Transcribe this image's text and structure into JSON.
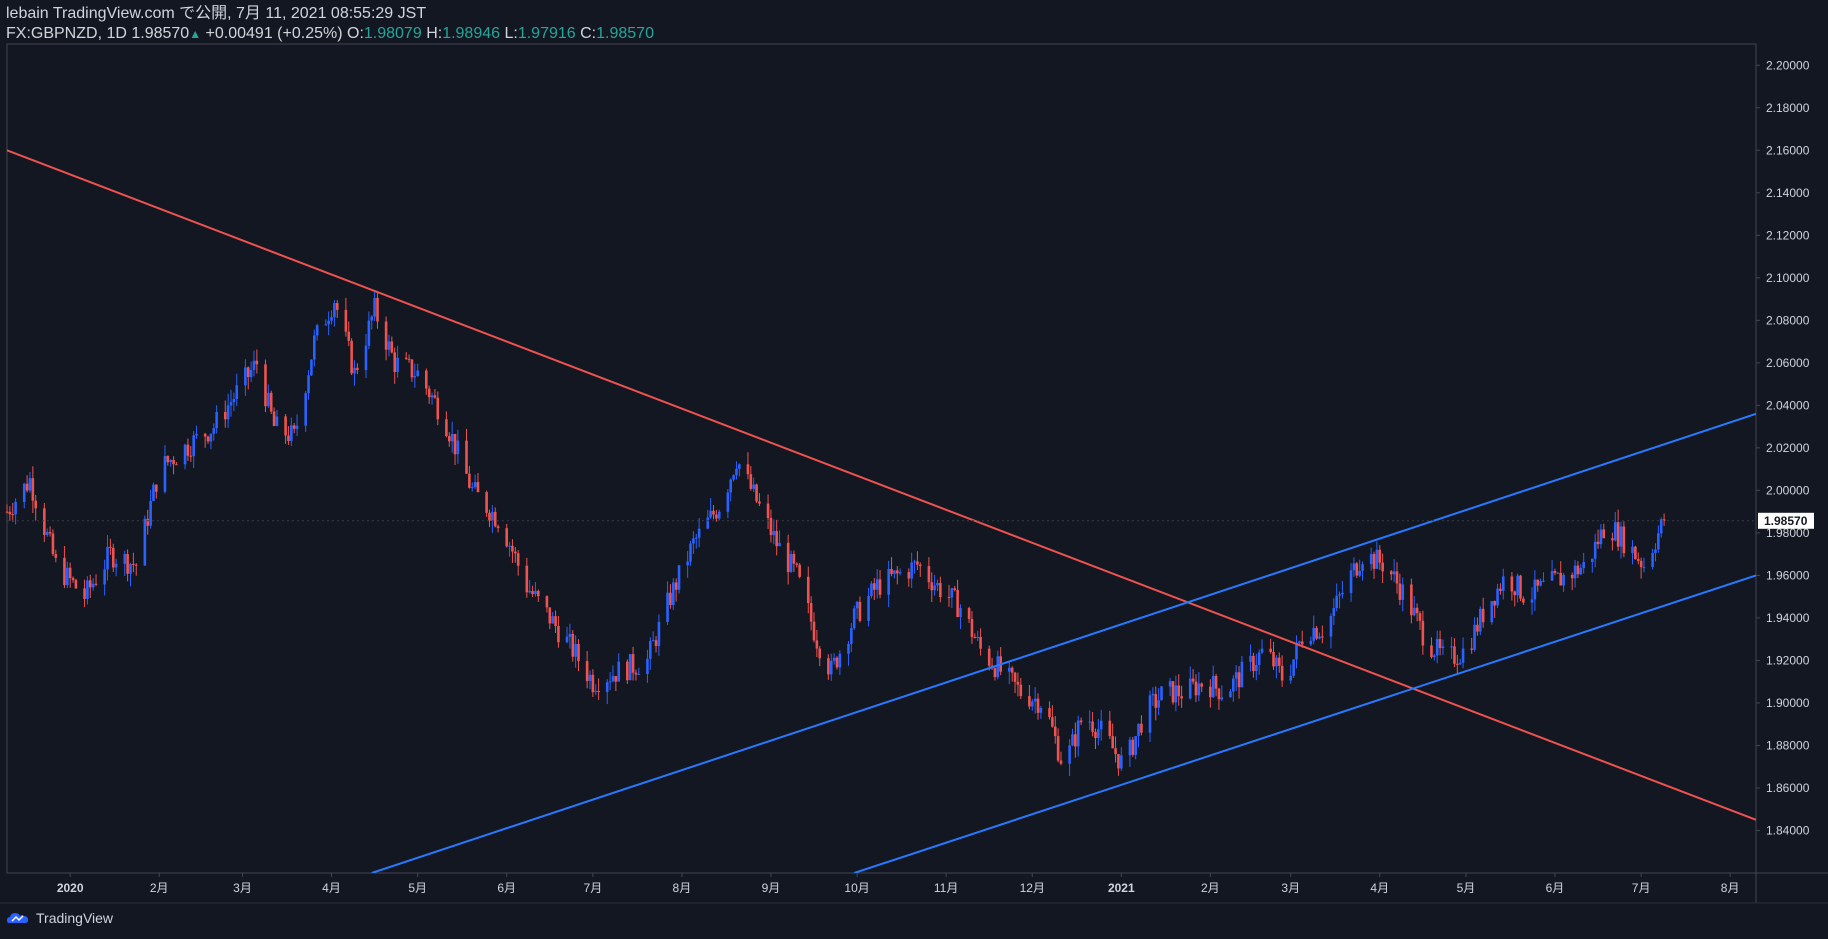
{
  "header": {
    "publisher": "lebain TradingView.com で公開, 7月 11, 2021 08:55:29 JST",
    "symbol": "FX:GBPNZD, 1D",
    "last": "1.98570",
    "change": "+0.00491 (+0.25%)",
    "o_label": "O:",
    "o_value": "1.98079",
    "h_label": "H:",
    "h_value": "1.98946",
    "l_label": "L:",
    "l_value": "1.97916",
    "c_label": "C:",
    "c_value": "1.98570"
  },
  "footer": {
    "brand": "TradingView"
  },
  "colors": {
    "background": "#131722",
    "up": "#2962ff",
    "down": "#ef5350",
    "support": "#2979ff",
    "resistance": "#ef5350",
    "axis_text": "#d1d4dc",
    "price_label_bg": "#ffffff"
  },
  "chart_data": {
    "type": "candlestick",
    "symbol": "FX:GBPNZD",
    "timeframe": "1D",
    "ylim": [
      1.82,
      2.21
    ],
    "y_ticks": [
      "1.84000",
      "1.86000",
      "1.88000",
      "1.90000",
      "1.92000",
      "1.94000",
      "1.96000",
      "1.98000",
      "2.00000",
      "2.02000",
      "2.04000",
      "2.06000",
      "2.08000",
      "2.10000",
      "2.12000",
      "2.14000",
      "2.16000",
      "2.18000",
      "2.20000"
    ],
    "x_ticks": [
      {
        "label": "2020",
        "date": "2020-01-01"
      },
      {
        "label": "2月",
        "date": "2020-02-01"
      },
      {
        "label": "3月",
        "date": "2020-03-01"
      },
      {
        "label": "4月",
        "date": "2020-04-01"
      },
      {
        "label": "5月",
        "date": "2020-05-01"
      },
      {
        "label": "6月",
        "date": "2020-06-01"
      },
      {
        "label": "7月",
        "date": "2020-07-01"
      },
      {
        "label": "8月",
        "date": "2020-08-01"
      },
      {
        "label": "9月",
        "date": "2020-09-01"
      },
      {
        "label": "10月",
        "date": "2020-10-01"
      },
      {
        "label": "11月",
        "date": "2020-11-01"
      },
      {
        "label": "12月",
        "date": "2020-12-01"
      },
      {
        "label": "2021",
        "date": "2021-01-01"
      },
      {
        "label": "2月",
        "date": "2021-02-01"
      },
      {
        "label": "3月",
        "date": "2021-03-01"
      },
      {
        "label": "4月",
        "date": "2021-04-01"
      },
      {
        "label": "5月",
        "date": "2021-05-01"
      },
      {
        "label": "6月",
        "date": "2021-06-01"
      },
      {
        "label": "7月",
        "date": "2021-07-01"
      },
      {
        "label": "8月",
        "date": "2021-08-01"
      }
    ],
    "x_range": [
      "2019-12-10",
      "2021-08-10"
    ],
    "current_price": "1.98570",
    "closes": [
      [
        "2019-12-10",
        1.99
      ],
      [
        "2019-12-18",
        2.005
      ],
      [
        "2019-12-27",
        1.965
      ],
      [
        "2020-01-06",
        1.95
      ],
      [
        "2020-01-15",
        1.97
      ],
      [
        "2020-01-24",
        1.965
      ],
      [
        "2020-02-01",
        2.01
      ],
      [
        "2020-02-10",
        2.02
      ],
      [
        "2020-02-20",
        2.03
      ],
      [
        "2020-03-01",
        2.05
      ],
      [
        "2020-03-06",
        2.06
      ],
      [
        "2020-03-12",
        2.03
      ],
      [
        "2020-03-19",
        2.025
      ],
      [
        "2020-03-26",
        2.07
      ],
      [
        "2020-04-02",
        2.09
      ],
      [
        "2020-04-09",
        2.055
      ],
      [
        "2020-04-16",
        2.085
      ],
      [
        "2020-04-23",
        2.06
      ],
      [
        "2020-05-01",
        2.055
      ],
      [
        "2020-05-10",
        2.035
      ],
      [
        "2020-05-20",
        2.0
      ],
      [
        "2020-05-30",
        1.985
      ],
      [
        "2020-06-08",
        1.955
      ],
      [
        "2020-06-16",
        1.94
      ],
      [
        "2020-06-24",
        1.925
      ],
      [
        "2020-07-01",
        1.91
      ],
      [
        "2020-07-10",
        1.915
      ],
      [
        "2020-07-20",
        1.92
      ],
      [
        "2020-07-28",
        1.95
      ],
      [
        "2020-08-05",
        1.975
      ],
      [
        "2020-08-15",
        1.995
      ],
      [
        "2020-08-20",
        2.015
      ],
      [
        "2020-08-27",
        1.995
      ],
      [
        "2020-09-03",
        1.975
      ],
      [
        "2020-09-10",
        1.96
      ],
      [
        "2020-09-17",
        1.93
      ],
      [
        "2020-09-22",
        1.915
      ],
      [
        "2020-09-30",
        1.94
      ],
      [
        "2020-10-08",
        1.955
      ],
      [
        "2020-10-15",
        1.96
      ],
      [
        "2020-10-22",
        1.965
      ],
      [
        "2020-10-29",
        1.955
      ],
      [
        "2020-11-06",
        1.945
      ],
      [
        "2020-11-13",
        1.925
      ],
      [
        "2020-11-20",
        1.915
      ],
      [
        "2020-11-27",
        1.905
      ],
      [
        "2020-12-05",
        1.9
      ],
      [
        "2020-12-12",
        1.87
      ],
      [
        "2020-12-19",
        1.895
      ],
      [
        "2020-12-26",
        1.885
      ],
      [
        "2021-01-02",
        1.87
      ],
      [
        "2021-01-09",
        1.895
      ],
      [
        "2021-01-16",
        1.905
      ],
      [
        "2021-01-23",
        1.905
      ],
      [
        "2021-01-30",
        1.91
      ],
      [
        "2021-02-06",
        1.905
      ],
      [
        "2021-02-13",
        1.915
      ],
      [
        "2021-02-20",
        1.925
      ],
      [
        "2021-02-27",
        1.91
      ],
      [
        "2021-03-06",
        1.935
      ],
      [
        "2021-03-13",
        1.935
      ],
      [
        "2021-03-20",
        1.955
      ],
      [
        "2021-03-26",
        1.97
      ],
      [
        "2021-04-03",
        1.965
      ],
      [
        "2021-04-10",
        1.95
      ],
      [
        "2021-04-17",
        1.93
      ],
      [
        "2021-04-24",
        1.92
      ],
      [
        "2021-05-01",
        1.925
      ],
      [
        "2021-05-08",
        1.945
      ],
      [
        "2021-05-15",
        1.96
      ],
      [
        "2021-05-22",
        1.95
      ],
      [
        "2021-05-29",
        1.955
      ],
      [
        "2021-06-05",
        1.96
      ],
      [
        "2021-06-12",
        1.965
      ],
      [
        "2021-06-19",
        1.985
      ],
      [
        "2021-06-26",
        1.975
      ],
      [
        "2021-07-02",
        1.965
      ],
      [
        "2021-07-09",
        1.9857
      ]
    ],
    "trendlines": [
      {
        "name": "resistance",
        "color": "#ef5350",
        "from": [
          "2019-12-10",
          2.16
        ],
        "to": [
          "2021-08-10",
          1.845
        ]
      },
      {
        "name": "channel-upper",
        "color": "#2979ff",
        "from": [
          "2020-04-15",
          1.82
        ],
        "to": [
          "2021-08-10",
          2.036
        ]
      },
      {
        "name": "channel-lower",
        "color": "#2979ff",
        "from": [
          "2020-09-30",
          1.82
        ],
        "to": [
          "2021-08-10",
          1.96
        ]
      }
    ]
  }
}
